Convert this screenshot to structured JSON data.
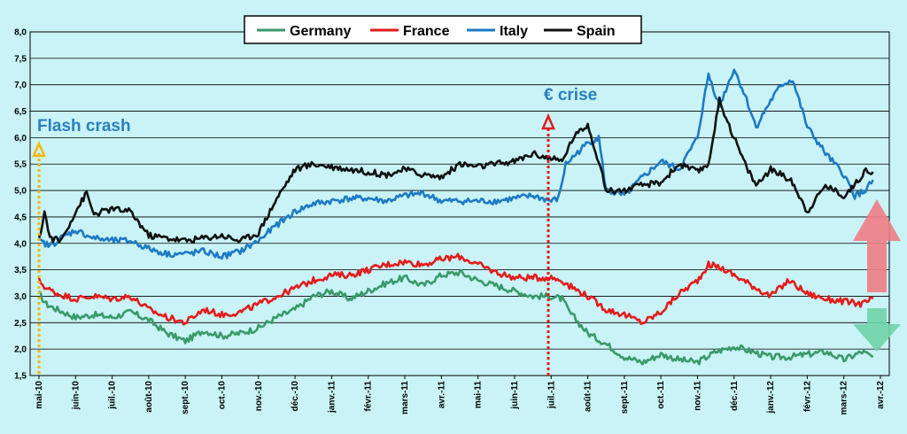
{
  "chart_data": {
    "type": "line",
    "title": "",
    "xlabel": "",
    "ylabel": "",
    "ylim": [
      1.5,
      8.0
    ],
    "y_ticks": [
      "8,0",
      "7,5",
      "7,0",
      "6,5",
      "6,0",
      "5,5",
      "5,0",
      "4,5",
      "4,0",
      "3,5",
      "3,0",
      "2,5",
      "2,0",
      "1,5"
    ],
    "x_tick_labels": [
      "mai-10",
      "juin-10",
      "juil.-10",
      "août-10",
      "sept.-10",
      "oct.-10",
      "nov.-10",
      "déc.-10",
      "janv.-11",
      "févr.-11",
      "mars-11",
      "avr.-11",
      "mai-11",
      "juin-11",
      "juil.-11",
      "août-11",
      "sept.-11",
      "oct.-11",
      "nov.-11",
      "déc.-11",
      "janv.-12",
      "févr.-12",
      "mars-12",
      "avr.-12"
    ],
    "x_unit": "months since May 2010",
    "grid": "horizontal",
    "legend_position": "top",
    "series": [
      {
        "name": "Germany",
        "color": "#3a9a6a",
        "points": [
          [
            0,
            3.05
          ],
          [
            0.2,
            2.85
          ],
          [
            0.5,
            2.75
          ],
          [
            1,
            2.6
          ],
          [
            1.5,
            2.65
          ],
          [
            2,
            2.6
          ],
          [
            2.5,
            2.7
          ],
          [
            3,
            2.55
          ],
          [
            3.5,
            2.3
          ],
          [
            4,
            2.15
          ],
          [
            4.5,
            2.35
          ],
          [
            5,
            2.25
          ],
          [
            5.5,
            2.3
          ],
          [
            6,
            2.4
          ],
          [
            6.5,
            2.6
          ],
          [
            7,
            2.75
          ],
          [
            7.5,
            3.0
          ],
          [
            8,
            3.1
          ],
          [
            8.5,
            2.95
          ],
          [
            9,
            3.1
          ],
          [
            9.5,
            3.25
          ],
          [
            10,
            3.35
          ],
          [
            10.5,
            3.2
          ],
          [
            11,
            3.4
          ],
          [
            11.5,
            3.45
          ],
          [
            12,
            3.3
          ],
          [
            12.5,
            3.2
          ],
          [
            13,
            3.1
          ],
          [
            13.5,
            3.0
          ],
          [
            14,
            3.0
          ],
          [
            14.3,
            2.95
          ],
          [
            14.5,
            2.7
          ],
          [
            15,
            2.3
          ],
          [
            15.5,
            2.1
          ],
          [
            16,
            1.85
          ],
          [
            16.5,
            1.75
          ],
          [
            17,
            1.9
          ],
          [
            17.5,
            1.8
          ],
          [
            18,
            1.75
          ],
          [
            18.5,
            1.95
          ],
          [
            19,
            2.05
          ],
          [
            19.5,
            1.95
          ],
          [
            20,
            1.85
          ],
          [
            20.5,
            1.85
          ],
          [
            21,
            1.9
          ],
          [
            21.5,
            1.95
          ],
          [
            22,
            1.8
          ],
          [
            22.5,
            1.95
          ],
          [
            22.8,
            1.85
          ]
        ]
      },
      {
        "name": "France",
        "color": "#e41b1b",
        "points": [
          [
            0,
            3.3
          ],
          [
            0.2,
            3.15
          ],
          [
            0.5,
            3.05
          ],
          [
            1,
            2.95
          ],
          [
            1.5,
            3.0
          ],
          [
            2,
            2.95
          ],
          [
            2.5,
            3.0
          ],
          [
            3,
            2.75
          ],
          [
            3.5,
            2.6
          ],
          [
            4,
            2.5
          ],
          [
            4.5,
            2.75
          ],
          [
            5,
            2.65
          ],
          [
            5.5,
            2.7
          ],
          [
            6,
            2.85
          ],
          [
            6.5,
            3.0
          ],
          [
            7,
            3.15
          ],
          [
            7.5,
            3.3
          ],
          [
            8,
            3.4
          ],
          [
            8.5,
            3.4
          ],
          [
            9,
            3.5
          ],
          [
            9.5,
            3.6
          ],
          [
            10,
            3.65
          ],
          [
            10.5,
            3.6
          ],
          [
            11,
            3.7
          ],
          [
            11.5,
            3.75
          ],
          [
            12,
            3.6
          ],
          [
            12.5,
            3.45
          ],
          [
            13,
            3.35
          ],
          [
            13.5,
            3.35
          ],
          [
            14,
            3.35
          ],
          [
            14.3,
            3.3
          ],
          [
            14.5,
            3.2
          ],
          [
            15,
            3.0
          ],
          [
            15.5,
            2.75
          ],
          [
            16,
            2.65
          ],
          [
            16.5,
            2.5
          ],
          [
            17,
            2.7
          ],
          [
            17.5,
            3.05
          ],
          [
            18,
            3.3
          ],
          [
            18.3,
            3.6
          ],
          [
            18.6,
            3.55
          ],
          [
            19,
            3.4
          ],
          [
            19.5,
            3.2
          ],
          [
            20,
            3.0
          ],
          [
            20.5,
            3.3
          ],
          [
            21,
            3.05
          ],
          [
            21.5,
            2.95
          ],
          [
            22,
            2.9
          ],
          [
            22.5,
            2.85
          ],
          [
            22.8,
            2.95
          ]
        ]
      },
      {
        "name": "Italy",
        "color": "#1e7ac4",
        "points": [
          [
            0,
            4.05
          ],
          [
            0.3,
            3.95
          ],
          [
            0.6,
            4.1
          ],
          [
            1,
            4.25
          ],
          [
            1.5,
            4.1
          ],
          [
            2,
            4.05
          ],
          [
            2.5,
            4.05
          ],
          [
            3,
            3.9
          ],
          [
            3.5,
            3.8
          ],
          [
            4,
            3.8
          ],
          [
            4.5,
            3.85
          ],
          [
            5,
            3.75
          ],
          [
            5.5,
            3.85
          ],
          [
            6,
            4.05
          ],
          [
            6.5,
            4.35
          ],
          [
            7,
            4.6
          ],
          [
            7.5,
            4.75
          ],
          [
            8,
            4.8
          ],
          [
            8.5,
            4.85
          ],
          [
            9,
            4.85
          ],
          [
            9.5,
            4.8
          ],
          [
            10,
            4.9
          ],
          [
            10.5,
            4.95
          ],
          [
            11,
            4.8
          ],
          [
            11.5,
            4.8
          ],
          [
            12,
            4.8
          ],
          [
            12.5,
            4.8
          ],
          [
            13,
            4.85
          ],
          [
            13.5,
            4.9
          ],
          [
            14,
            4.8
          ],
          [
            14.2,
            4.85
          ],
          [
            14.4,
            5.5
          ],
          [
            15,
            5.9
          ],
          [
            15.3,
            6.0
          ],
          [
            15.5,
            5.0
          ],
          [
            16,
            4.9
          ],
          [
            16.5,
            5.25
          ],
          [
            17,
            5.55
          ],
          [
            17.5,
            5.4
          ],
          [
            18,
            6.0
          ],
          [
            18.3,
            7.2
          ],
          [
            18.6,
            6.6
          ],
          [
            19,
            7.3
          ],
          [
            19.3,
            6.8
          ],
          [
            19.6,
            6.2
          ],
          [
            20,
            6.7
          ],
          [
            20.3,
            7.0
          ],
          [
            20.6,
            7.1
          ],
          [
            21,
            6.2
          ],
          [
            21.5,
            5.7
          ],
          [
            22,
            5.3
          ],
          [
            22.3,
            4.9
          ],
          [
            22.6,
            5.0
          ],
          [
            22.8,
            5.2
          ]
        ]
      },
      {
        "name": "Spain",
        "color": "#111111",
        "points": [
          [
            0,
            4.05
          ],
          [
            0.15,
            4.6
          ],
          [
            0.3,
            4.1
          ],
          [
            0.6,
            4.05
          ],
          [
            1,
            4.6
          ],
          [
            1.3,
            4.95
          ],
          [
            1.5,
            4.55
          ],
          [
            2,
            4.65
          ],
          [
            2.5,
            4.6
          ],
          [
            3,
            4.15
          ],
          [
            3.5,
            4.1
          ],
          [
            4,
            4.05
          ],
          [
            4.5,
            4.1
          ],
          [
            5,
            4.15
          ],
          [
            5.5,
            4.05
          ],
          [
            6,
            4.2
          ],
          [
            6.5,
            4.85
          ],
          [
            7,
            5.4
          ],
          [
            7.5,
            5.5
          ],
          [
            8,
            5.45
          ],
          [
            8.5,
            5.4
          ],
          [
            9,
            5.35
          ],
          [
            9.5,
            5.3
          ],
          [
            10,
            5.4
          ],
          [
            10.5,
            5.3
          ],
          [
            11,
            5.25
          ],
          [
            11.5,
            5.5
          ],
          [
            12,
            5.45
          ],
          [
            12.5,
            5.5
          ],
          [
            13,
            5.55
          ],
          [
            13.5,
            5.7
          ],
          [
            14,
            5.6
          ],
          [
            14.3,
            5.55
          ],
          [
            14.6,
            6.0
          ],
          [
            15,
            6.25
          ],
          [
            15.3,
            5.55
          ],
          [
            15.5,
            5.0
          ],
          [
            16,
            5.0
          ],
          [
            16.5,
            5.1
          ],
          [
            17,
            5.15
          ],
          [
            17.5,
            5.5
          ],
          [
            18,
            5.35
          ],
          [
            18.3,
            5.5
          ],
          [
            18.6,
            6.7
          ],
          [
            19,
            6.0
          ],
          [
            19.3,
            5.5
          ],
          [
            19.6,
            5.1
          ],
          [
            20,
            5.4
          ],
          [
            20.3,
            5.3
          ],
          [
            20.6,
            5.15
          ],
          [
            21,
            4.6
          ],
          [
            21.5,
            5.1
          ],
          [
            22,
            4.9
          ],
          [
            22.3,
            5.1
          ],
          [
            22.6,
            5.4
          ],
          [
            22.8,
            5.35
          ]
        ]
      }
    ],
    "annotations": [
      {
        "text": "Flash crash",
        "color": "#2a7fc1"
      },
      {
        "text": "€ crise",
        "color": "#2a7fc1"
      }
    ]
  }
}
